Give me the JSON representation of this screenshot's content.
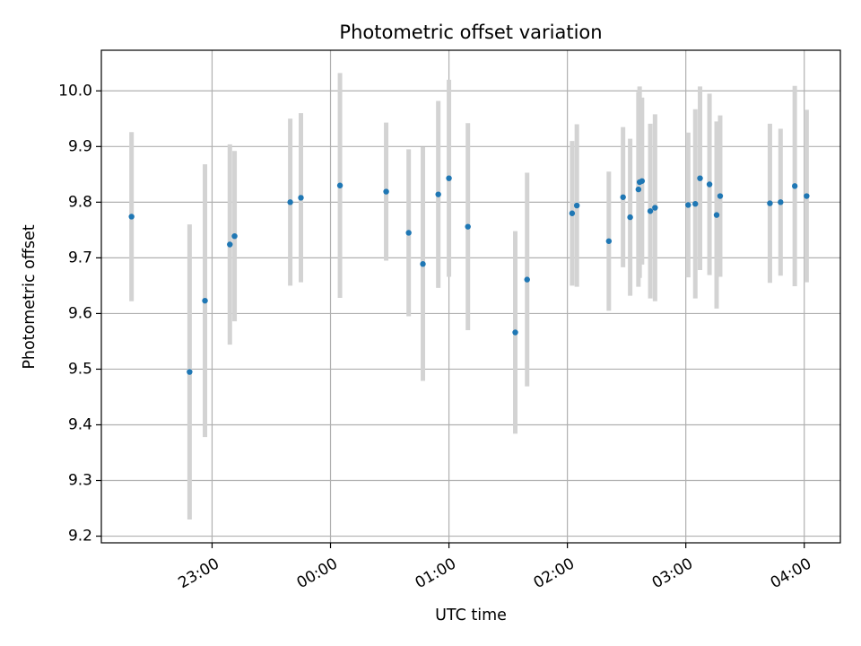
{
  "chart_data": {
    "type": "scatter",
    "title": "Photometric offset variation",
    "xlabel": "UTC time",
    "ylabel": "Photometric offset",
    "x_unit": "UTC hours (values above 24 are after midnight)",
    "xlim": [
      22.065,
      28.305
    ],
    "ylim": [
      9.188,
      10.073
    ],
    "grid": true,
    "x_ticks": [
      {
        "value": 23,
        "label": "23:00"
      },
      {
        "value": 24,
        "label": "00:00"
      },
      {
        "value": 25,
        "label": "01:00"
      },
      {
        "value": 26,
        "label": "02:00"
      },
      {
        "value": 27,
        "label": "03:00"
      },
      {
        "value": 28,
        "label": "04:00"
      }
    ],
    "y_ticks": [
      {
        "value": 9.2,
        "label": "9.2"
      },
      {
        "value": 9.3,
        "label": "9.3"
      },
      {
        "value": 9.4,
        "label": "9.4"
      },
      {
        "value": 9.5,
        "label": "9.5"
      },
      {
        "value": 9.6,
        "label": "9.6"
      },
      {
        "value": 9.7,
        "label": "9.7"
      },
      {
        "value": 9.8,
        "label": "9.8"
      },
      {
        "value": 9.9,
        "label": "9.9"
      },
      {
        "value": 10.0,
        "label": "10.0"
      }
    ],
    "colors": {
      "points": "#1f77b4",
      "errorbars": "#d3d3d3",
      "grid": "#b0b0b0"
    },
    "series": [
      {
        "points": [
          {
            "x": 22.32,
            "y": 9.774,
            "err": 0.152
          },
          {
            "x": 22.81,
            "y": 9.495,
            "err": 0.265
          },
          {
            "x": 22.94,
            "y": 9.623,
            "err": 0.245
          },
          {
            "x": 23.15,
            "y": 9.724,
            "err": 0.18
          },
          {
            "x": 23.19,
            "y": 9.739,
            "err": 0.153
          },
          {
            "x": 23.66,
            "y": 9.8,
            "err": 0.15
          },
          {
            "x": 23.75,
            "y": 9.808,
            "err": 0.152
          },
          {
            "x": 24.08,
            "y": 9.83,
            "err": 0.202
          },
          {
            "x": 24.47,
            "y": 9.819,
            "err": 0.124
          },
          {
            "x": 24.66,
            "y": 9.745,
            "err": 0.15
          },
          {
            "x": 24.78,
            "y": 9.689,
            "err": 0.21
          },
          {
            "x": 24.91,
            "y": 9.814,
            "err": 0.168
          },
          {
            "x": 25.0,
            "y": 9.843,
            "err": 0.177
          },
          {
            "x": 25.16,
            "y": 9.756,
            "err": 0.186
          },
          {
            "x": 25.56,
            "y": 9.566,
            "err": 0.182
          },
          {
            "x": 25.66,
            "y": 9.661,
            "err": 0.192
          },
          {
            "x": 26.04,
            "y": 9.78,
            "err": 0.13
          },
          {
            "x": 26.08,
            "y": 9.794,
            "err": 0.146
          },
          {
            "x": 26.35,
            "y": 9.73,
            "err": 0.125
          },
          {
            "x": 26.47,
            "y": 9.809,
            "err": 0.126
          },
          {
            "x": 26.53,
            "y": 9.773,
            "err": 0.141
          },
          {
            "x": 26.6,
            "y": 9.823,
            "err": 0.175
          },
          {
            "x": 26.61,
            "y": 9.836,
            "err": 0.172
          },
          {
            "x": 26.63,
            "y": 9.838,
            "err": 0.15
          },
          {
            "x": 26.7,
            "y": 9.784,
            "err": 0.157
          },
          {
            "x": 26.74,
            "y": 9.79,
            "err": 0.168
          },
          {
            "x": 27.02,
            "y": 9.795,
            "err": 0.13
          },
          {
            "x": 27.08,
            "y": 9.797,
            "err": 0.17
          },
          {
            "x": 27.12,
            "y": 9.843,
            "err": 0.165
          },
          {
            "x": 27.2,
            "y": 9.832,
            "err": 0.163
          },
          {
            "x": 27.26,
            "y": 9.777,
            "err": 0.168
          },
          {
            "x": 27.29,
            "y": 9.811,
            "err": 0.145
          },
          {
            "x": 27.71,
            "y": 9.798,
            "err": 0.143
          },
          {
            "x": 27.8,
            "y": 9.8,
            "err": 0.132
          },
          {
            "x": 27.92,
            "y": 9.829,
            "err": 0.18
          },
          {
            "x": 28.02,
            "y": 9.811,
            "err": 0.155
          }
        ]
      }
    ]
  }
}
